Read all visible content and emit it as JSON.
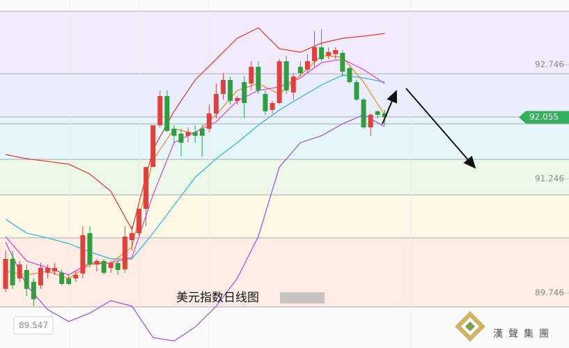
{
  "chart_data": {
    "type": "candlestick",
    "title": "美元指数日线图",
    "brand": "漢聲集團",
    "ylim": [
      89.023,
      93.597
    ],
    "yticks": [
      92.746,
      91.246,
      89.746
    ],
    "last_price": 92.055,
    "low_price": 89.547,
    "up_color": "#e0413c",
    "down_color": "#2e9e3e",
    "levels": [
      93.45,
      92.627,
      92.06,
      91.969,
      91.502,
      91.036,
      90.469,
      89.563
    ],
    "band_colors": [
      "#f0e7fc",
      "#e6ebfc",
      "#e3f2fb",
      "#e0f6f9",
      "#e9f8e4",
      "#fdf8e2",
      "#fdeadf"
    ],
    "ohlc": [
      [
        89.801,
        90.304,
        89.755,
        90.194
      ],
      [
        90.194,
        90.304,
        89.801,
        89.847
      ],
      [
        89.938,
        90.167,
        89.893,
        90.121
      ],
      [
        90.048,
        90.121,
        89.71,
        89.801
      ],
      [
        89.893,
        89.938,
        89.573,
        89.664
      ],
      [
        89.847,
        90.14,
        89.801,
        90.076
      ],
      [
        90.012,
        90.121,
        89.938,
        90.076
      ],
      [
        90.03,
        90.14,
        89.984,
        90.076
      ],
      [
        90.012,
        90.057,
        89.847,
        89.865
      ],
      [
        89.938,
        89.984,
        89.847,
        89.865
      ],
      [
        89.938,
        90.03,
        89.893,
        89.984
      ],
      [
        90.002,
        90.624,
        89.938,
        90.505
      ],
      [
        90.533,
        90.624,
        90.076,
        90.121
      ],
      [
        90.121,
        90.194,
        90.03,
        90.167
      ],
      [
        90.167,
        90.194,
        89.984,
        90.012
      ],
      [
        90.076,
        90.167,
        90.012,
        90.14
      ],
      [
        90.14,
        90.194,
        89.984,
        90.048
      ],
      [
        90.057,
        90.624,
        90.012,
        90.487
      ],
      [
        90.441,
        90.624,
        90.304,
        90.533
      ],
      [
        90.533,
        90.853,
        90.487,
        90.853
      ],
      [
        90.853,
        91.402,
        90.624,
        91.402
      ],
      [
        91.402,
        91.951,
        91.402,
        91.951
      ],
      [
        91.951,
        92.408,
        91.923,
        92.335
      ],
      [
        92.335,
        92.408,
        91.859,
        91.877
      ],
      [
        91.905,
        91.951,
        91.722,
        91.813
      ],
      [
        91.841,
        91.905,
        91.539,
        91.722
      ],
      [
        91.813,
        91.923,
        91.722,
        91.859
      ],
      [
        91.859,
        91.951,
        91.722,
        91.813
      ],
      [
        91.905,
        91.951,
        91.539,
        91.813
      ],
      [
        91.905,
        92.225,
        91.859,
        92.106
      ],
      [
        92.106,
        92.499,
        92.042,
        92.362
      ],
      [
        92.362,
        92.637,
        92.289,
        92.545
      ],
      [
        92.545,
        92.591,
        92.225,
        92.271
      ],
      [
        92.271,
        92.335,
        92.225,
        92.309
      ],
      [
        92.518,
        92.591,
        92.042,
        92.243
      ],
      [
        92.499,
        92.792,
        92.408,
        92.719
      ],
      [
        92.719,
        92.792,
        92.362,
        92.408
      ],
      [
        92.362,
        92.408,
        92.088,
        92.134
      ],
      [
        92.152,
        92.271,
        92.106,
        92.243
      ],
      [
        92.243,
        92.82,
        92.225,
        92.792
      ],
      [
        92.792,
        92.865,
        92.362,
        92.408
      ],
      [
        92.381,
        92.637,
        92.289,
        92.591
      ],
      [
        92.719,
        92.792,
        92.591,
        92.637
      ],
      [
        92.682,
        92.884,
        92.637,
        92.792
      ],
      [
        92.792,
        93.185,
        92.719,
        92.975
      ],
      [
        92.975,
        93.213,
        92.792,
        92.82
      ],
      [
        92.865,
        92.975,
        92.82,
        92.911
      ],
      [
        92.884,
        92.975,
        92.82,
        92.938
      ],
      [
        92.902,
        92.938,
        92.591,
        92.655
      ],
      [
        92.701,
        92.719,
        92.499,
        92.518
      ],
      [
        92.518,
        92.545,
        92.271,
        92.289
      ],
      [
        92.289,
        92.309,
        91.905,
        91.923
      ],
      [
        91.923,
        92.106,
        91.813,
        92.088
      ],
      [
        92.134,
        92.152,
        92.042,
        92.088
      ],
      [
        92.106,
        92.152,
        91.951,
        92.055
      ]
    ],
    "overlay_x": [
      0,
      3,
      6,
      9,
      12,
      15,
      18,
      21,
      24,
      27,
      30,
      33,
      36,
      39,
      42,
      45,
      48,
      51,
      54
    ],
    "series": [
      {
        "color": "#e0332c",
        "values": [
          91.566,
          91.511,
          91.475,
          91.438,
          91.31,
          91.082,
          90.579,
          91.63,
          92.134,
          92.545,
          92.82,
          93.094,
          93.231,
          92.957,
          92.911,
          93.03,
          93.094,
          93.121,
          93.158
        ]
      },
      {
        "color": "#9b4de0",
        "values": [
          90.414,
          89.847,
          89.527,
          89.371,
          89.481,
          89.646,
          89.573,
          89.161,
          89.115,
          89.298,
          89.573,
          89.938,
          90.487,
          91.402,
          91.722,
          91.813,
          91.969,
          92.088,
          91.932
        ]
      },
      {
        "color": "#22b3d6",
        "values": [
          90.716,
          90.533,
          90.469,
          90.396,
          90.286,
          90.194,
          90.194,
          90.533,
          90.899,
          91.265,
          91.511,
          91.722,
          91.951,
          92.152,
          92.316,
          92.481,
          92.609,
          92.573,
          92.518
        ]
      },
      {
        "color": "#f08a1c",
        "values": [
          90.03,
          89.984,
          90.03,
          89.938,
          90.121,
          90.14,
          90.35,
          91.493,
          91.905,
          91.841,
          92.088,
          92.408,
          92.499,
          92.362,
          92.609,
          92.865,
          92.847,
          92.518,
          92.088
        ]
      },
      {
        "color": "#e03ccf",
        "values": [
          90.487,
          90.167,
          90.076,
          89.984,
          90.14,
          90.14,
          90.213,
          91.036,
          91.722,
          91.859,
          91.996,
          92.271,
          92.408,
          92.454,
          92.573,
          92.774,
          92.82,
          92.682,
          92.499
        ]
      }
    ]
  }
}
